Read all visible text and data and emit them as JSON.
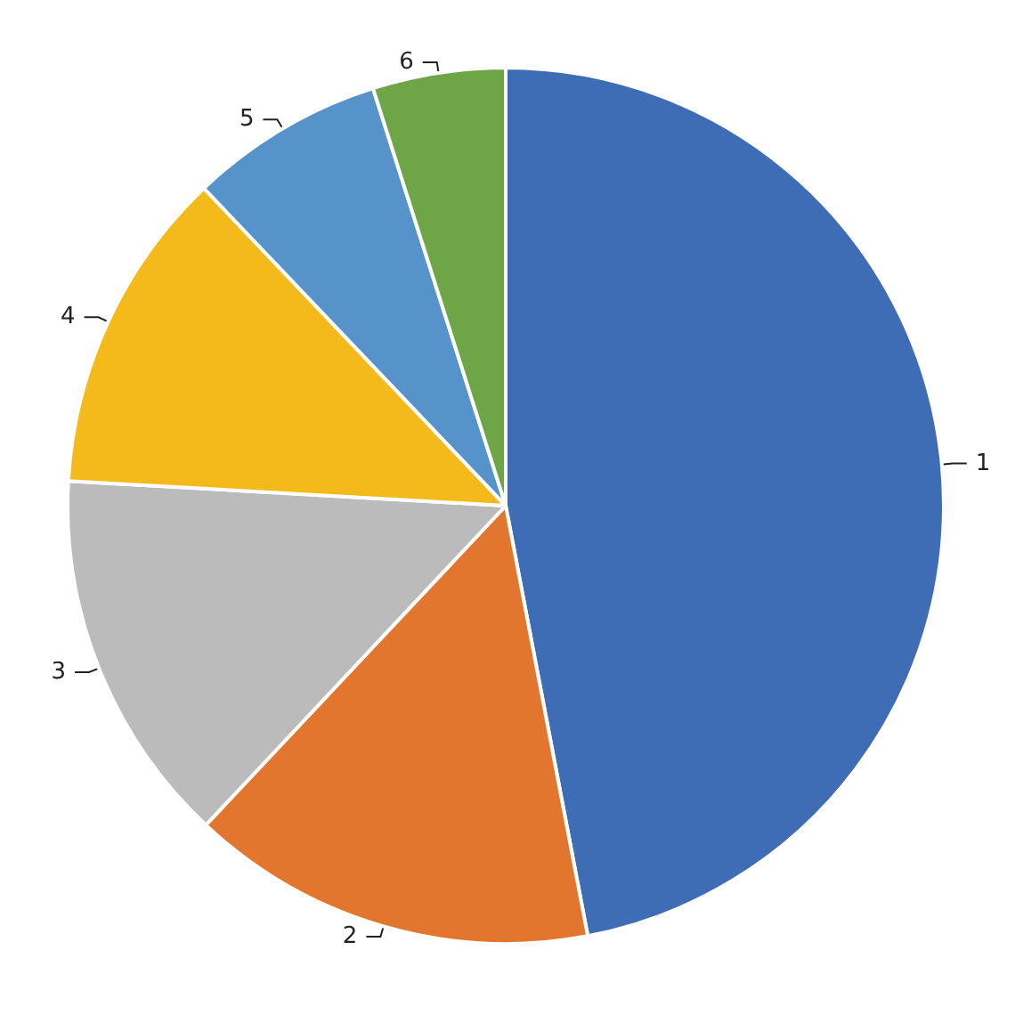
{
  "chart_data": {
    "type": "pie",
    "categories": [
      "1",
      "2",
      "3",
      "4",
      "5",
      "6"
    ],
    "values": [
      47,
      15,
      13.9,
      12,
      7.2,
      4.9
    ],
    "colors": [
      "#3f6db5",
      "#e2762f",
      "#bbbbbb",
      "#f4b91a",
      "#5693ca",
      "#6ea647"
    ],
    "legend": false
  }
}
